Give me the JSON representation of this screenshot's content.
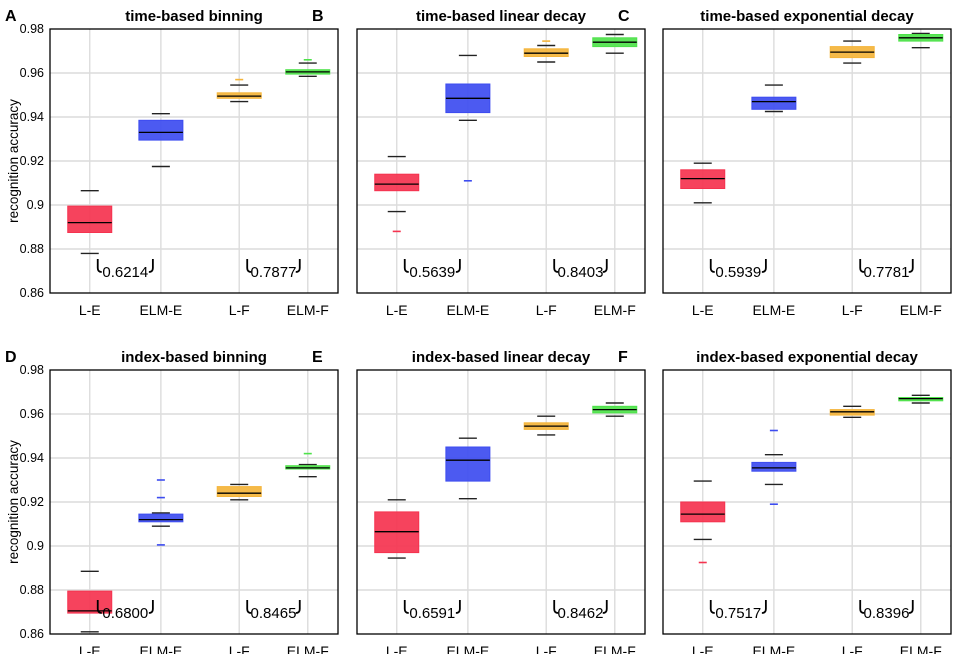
{
  "colors": {
    "L-E": "#f5334f",
    "ELM-E": "#3d4cf0",
    "L-F": "#f4b43a",
    "ELM-F": "#4ee24a",
    "grid": "#dcdcdc",
    "whisker": "#222222",
    "median": "#000000"
  },
  "chart_data": [
    {
      "type": "box",
      "panel": "A",
      "title": "time-based binning",
      "ylabel": "recognition accuracy",
      "ylim": [
        0.86,
        0.98
      ],
      "yticks": [
        "0.86",
        "0.88",
        "0.9",
        "0.92",
        "0.94",
        "0.96",
        "0.98"
      ],
      "categories": [
        "L-E",
        "ELM-E",
        "L-F",
        "ELM-F"
      ],
      "boxes": [
        {
          "q1": 0.8875,
          "median": 0.892,
          "q3": 0.8995,
          "whisker_low": 0.878,
          "whisker_high": 0.9065,
          "outliers": []
        },
        {
          "q1": 0.9295,
          "median": 0.933,
          "q3": 0.9385,
          "whisker_low": 0.9175,
          "whisker_high": 0.9415,
          "outliers": []
        },
        {
          "q1": 0.9485,
          "median": 0.9495,
          "q3": 0.951,
          "whisker_low": 0.947,
          "whisker_high": 0.9545,
          "outliers": [
            0.957
          ]
        },
        {
          "q1": 0.9595,
          "median": 0.9605,
          "q3": 0.9615,
          "whisker_low": 0.9585,
          "whisker_high": 0.9645,
          "outliers": [
            0.966
          ]
        }
      ],
      "brackets": [
        {
          "label": "0.6214",
          "pair": [
            0,
            1
          ]
        },
        {
          "label": "0.7877",
          "pair": [
            2,
            3
          ]
        }
      ]
    },
    {
      "type": "box",
      "panel": "B",
      "title": "time-based linear decay",
      "ylim": [
        0.86,
        0.98
      ],
      "categories": [
        "L-E",
        "ELM-E",
        "L-F",
        "ELM-F"
      ],
      "boxes": [
        {
          "q1": 0.9065,
          "median": 0.9095,
          "q3": 0.914,
          "whisker_low": 0.897,
          "whisker_high": 0.922,
          "outliers": [
            0.888
          ]
        },
        {
          "q1": 0.942,
          "median": 0.9485,
          "q3": 0.955,
          "whisker_low": 0.9385,
          "whisker_high": 0.968,
          "outliers": [
            0.911
          ]
        },
        {
          "q1": 0.9675,
          "median": 0.969,
          "q3": 0.971,
          "whisker_low": 0.965,
          "whisker_high": 0.9725,
          "outliers": [
            0.9745
          ]
        },
        {
          "q1": 0.972,
          "median": 0.974,
          "q3": 0.976,
          "whisker_low": 0.969,
          "whisker_high": 0.9775,
          "outliers": []
        }
      ],
      "brackets": [
        {
          "label": "0.5639",
          "pair": [
            0,
            1
          ]
        },
        {
          "label": "0.8403",
          "pair": [
            2,
            3
          ]
        }
      ]
    },
    {
      "type": "box",
      "panel": "C",
      "title": "time-based exponential decay",
      "ylim": [
        0.86,
        0.98
      ],
      "categories": [
        "L-E",
        "ELM-E",
        "L-F",
        "ELM-F"
      ],
      "boxes": [
        {
          "q1": 0.9075,
          "median": 0.912,
          "q3": 0.916,
          "whisker_low": 0.901,
          "whisker_high": 0.919,
          "outliers": []
        },
        {
          "q1": 0.9435,
          "median": 0.947,
          "q3": 0.949,
          "whisker_low": 0.9425,
          "whisker_high": 0.9545,
          "outliers": []
        },
        {
          "q1": 0.967,
          "median": 0.9695,
          "q3": 0.972,
          "whisker_low": 0.9645,
          "whisker_high": 0.9745,
          "outliers": []
        },
        {
          "q1": 0.9745,
          "median": 0.976,
          "q3": 0.9775,
          "whisker_low": 0.9715,
          "whisker_high": 0.978,
          "outliers": []
        }
      ],
      "brackets": [
        {
          "label": "0.5939",
          "pair": [
            0,
            1
          ]
        },
        {
          "label": "0.7781",
          "pair": [
            2,
            3
          ]
        }
      ]
    },
    {
      "type": "box",
      "panel": "D",
      "title": "index-based binning",
      "ylabel": "recognition accuracy",
      "ylim": [
        0.86,
        0.98
      ],
      "yticks": [
        "0.86",
        "0.88",
        "0.9",
        "0.92",
        "0.94",
        "0.96",
        "0.98"
      ],
      "categories": [
        "L-E",
        "ELM-E",
        "L-F",
        "ELM-F"
      ],
      "boxes": [
        {
          "q1": 0.8695,
          "median": 0.8705,
          "q3": 0.8795,
          "whisker_low": 0.861,
          "whisker_high": 0.8885,
          "outliers": []
        },
        {
          "q1": 0.911,
          "median": 0.912,
          "q3": 0.9145,
          "whisker_low": 0.909,
          "whisker_high": 0.915,
          "outliers": [
            0.922,
            0.93,
            0.9005
          ]
        },
        {
          "q1": 0.9225,
          "median": 0.924,
          "q3": 0.927,
          "whisker_low": 0.921,
          "whisker_high": 0.928,
          "outliers": []
        },
        {
          "q1": 0.935,
          "median": 0.9355,
          "q3": 0.9365,
          "whisker_low": 0.9315,
          "whisker_high": 0.937,
          "outliers": [
            0.942
          ]
        }
      ],
      "brackets": [
        {
          "label": "0.6800",
          "pair": [
            0,
            1
          ]
        },
        {
          "label": "0.8465",
          "pair": [
            2,
            3
          ]
        }
      ]
    },
    {
      "type": "box",
      "panel": "E",
      "title": "index-based linear decay",
      "ylim": [
        0.86,
        0.98
      ],
      "categories": [
        "L-E",
        "ELM-E",
        "L-F",
        "ELM-F"
      ],
      "boxes": [
        {
          "q1": 0.897,
          "median": 0.9065,
          "q3": 0.9155,
          "whisker_low": 0.8945,
          "whisker_high": 0.921,
          "outliers": []
        },
        {
          "q1": 0.9295,
          "median": 0.939,
          "q3": 0.945,
          "whisker_low": 0.9215,
          "whisker_high": 0.949,
          "outliers": []
        },
        {
          "q1": 0.953,
          "median": 0.9545,
          "q3": 0.956,
          "whisker_low": 0.9505,
          "whisker_high": 0.959,
          "outliers": []
        },
        {
          "q1": 0.9605,
          "median": 0.962,
          "q3": 0.9635,
          "whisker_low": 0.959,
          "whisker_high": 0.965,
          "outliers": []
        }
      ],
      "brackets": [
        {
          "label": "0.6591",
          "pair": [
            0,
            1
          ]
        },
        {
          "label": "0.8462",
          "pair": [
            2,
            3
          ]
        }
      ]
    },
    {
      "type": "box",
      "panel": "F",
      "title": "index-based exponential decay",
      "ylim": [
        0.86,
        0.98
      ],
      "categories": [
        "L-E",
        "ELM-E",
        "L-F",
        "ELM-F"
      ],
      "boxes": [
        {
          "q1": 0.911,
          "median": 0.9145,
          "q3": 0.92,
          "whisker_low": 0.903,
          "whisker_high": 0.9295,
          "outliers": [
            0.8925
          ]
        },
        {
          "q1": 0.934,
          "median": 0.9355,
          "q3": 0.938,
          "whisker_low": 0.928,
          "whisker_high": 0.9415,
          "outliers": [
            0.9525,
            0.919
          ]
        },
        {
          "q1": 0.9595,
          "median": 0.961,
          "q3": 0.962,
          "whisker_low": 0.9585,
          "whisker_high": 0.9635,
          "outliers": []
        },
        {
          "q1": 0.966,
          "median": 0.967,
          "q3": 0.9675,
          "whisker_low": 0.965,
          "whisker_high": 0.9685,
          "outliers": []
        }
      ],
      "brackets": [
        {
          "label": "0.7517",
          "pair": [
            0,
            1
          ]
        },
        {
          "label": "0.8396",
          "pair": [
            2,
            3
          ]
        }
      ]
    }
  ]
}
